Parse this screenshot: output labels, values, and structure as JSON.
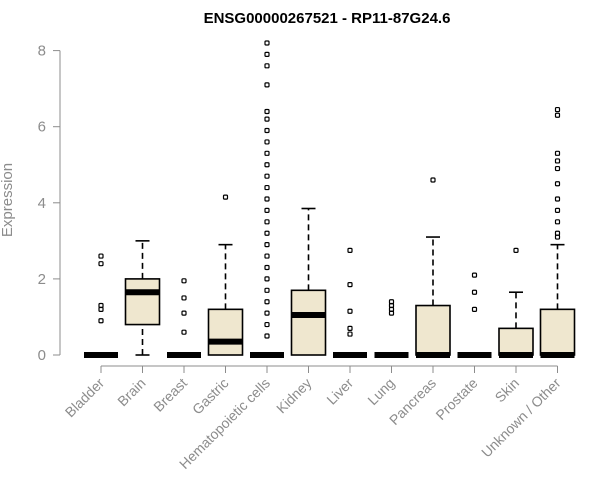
{
  "chart_data": {
    "type": "box",
    "title": "ENSG00000267521 - RP11-87G24.6",
    "xlabel": "",
    "ylabel": "Expression",
    "ylim": [
      0,
      8.2
    ],
    "yticks": [
      0,
      2,
      4,
      6,
      8
    ],
    "box_fill": "#efe7cf",
    "categories": [
      "Bladder",
      "Brain",
      "Breast",
      "Gastric",
      "Hematopoietic cells",
      "Kidney",
      "Liver",
      "Lung",
      "Pancreas",
      "Prostate",
      "Skin",
      "Unknown / Other"
    ],
    "boxes": [
      {
        "name": "Bladder",
        "low": 0,
        "q1": 0,
        "median": 0,
        "q3": 0,
        "high": 0,
        "outliers": [
          0.9,
          1.2,
          1.3,
          2.4,
          2.6
        ]
      },
      {
        "name": "Brain",
        "low": 0,
        "q1": 0.8,
        "median": 1.65,
        "q3": 2.0,
        "high": 3.0,
        "outliers": []
      },
      {
        "name": "Breast",
        "low": 0,
        "q1": 0,
        "median": 0,
        "q3": 0,
        "high": 0,
        "outliers": [
          0.6,
          1.1,
          1.5,
          1.95
        ]
      },
      {
        "name": "Gastric",
        "low": 0,
        "q1": 0,
        "median": 0.35,
        "q3": 1.2,
        "high": 2.9,
        "outliers": [
          4.15
        ]
      },
      {
        "name": "Hematopoietic cells",
        "low": 0,
        "q1": 0,
        "median": 0,
        "q3": 0,
        "high": 0,
        "outliers": [
          0.5,
          0.8,
          1.1,
          1.4,
          1.7,
          2.0,
          2.3,
          2.6,
          2.9,
          3.2,
          3.5,
          3.8,
          4.1,
          4.4,
          4.7,
          5.0,
          5.3,
          5.6,
          5.9,
          6.2,
          6.4,
          7.1,
          7.6,
          7.9,
          8.2
        ]
      },
      {
        "name": "Kidney",
        "low": 0,
        "q1": 0,
        "median": 1.05,
        "q3": 1.7,
        "high": 3.85,
        "outliers": []
      },
      {
        "name": "Liver",
        "low": 0,
        "q1": 0,
        "median": 0,
        "q3": 0,
        "high": 0,
        "outliers": [
          0.55,
          0.7,
          1.15,
          1.85,
          2.75
        ]
      },
      {
        "name": "Lung",
        "low": 0,
        "q1": 0,
        "median": 0,
        "q3": 0,
        "high": 0,
        "outliers": [
          1.1,
          1.2,
          1.3,
          1.4
        ]
      },
      {
        "name": "Pancreas",
        "low": 0,
        "q1": 0,
        "median": 0,
        "q3": 1.3,
        "high": 3.1,
        "outliers": [
          4.6
        ]
      },
      {
        "name": "Prostate",
        "low": 0,
        "q1": 0,
        "median": 0,
        "q3": 0,
        "high": 0,
        "outliers": [
          1.2,
          1.65,
          2.1
        ]
      },
      {
        "name": "Skin",
        "low": 0,
        "q1": 0,
        "median": 0,
        "q3": 0.7,
        "high": 1.65,
        "outliers": [
          2.75
        ]
      },
      {
        "name": "Unknown / Other",
        "low": 0,
        "q1": 0,
        "median": 0,
        "q3": 1.2,
        "high": 2.9,
        "outliers": [
          3.1,
          3.2,
          3.5,
          3.8,
          4.1,
          4.5,
          4.9,
          5.1,
          5.3,
          6.3,
          6.45
        ]
      }
    ]
  }
}
